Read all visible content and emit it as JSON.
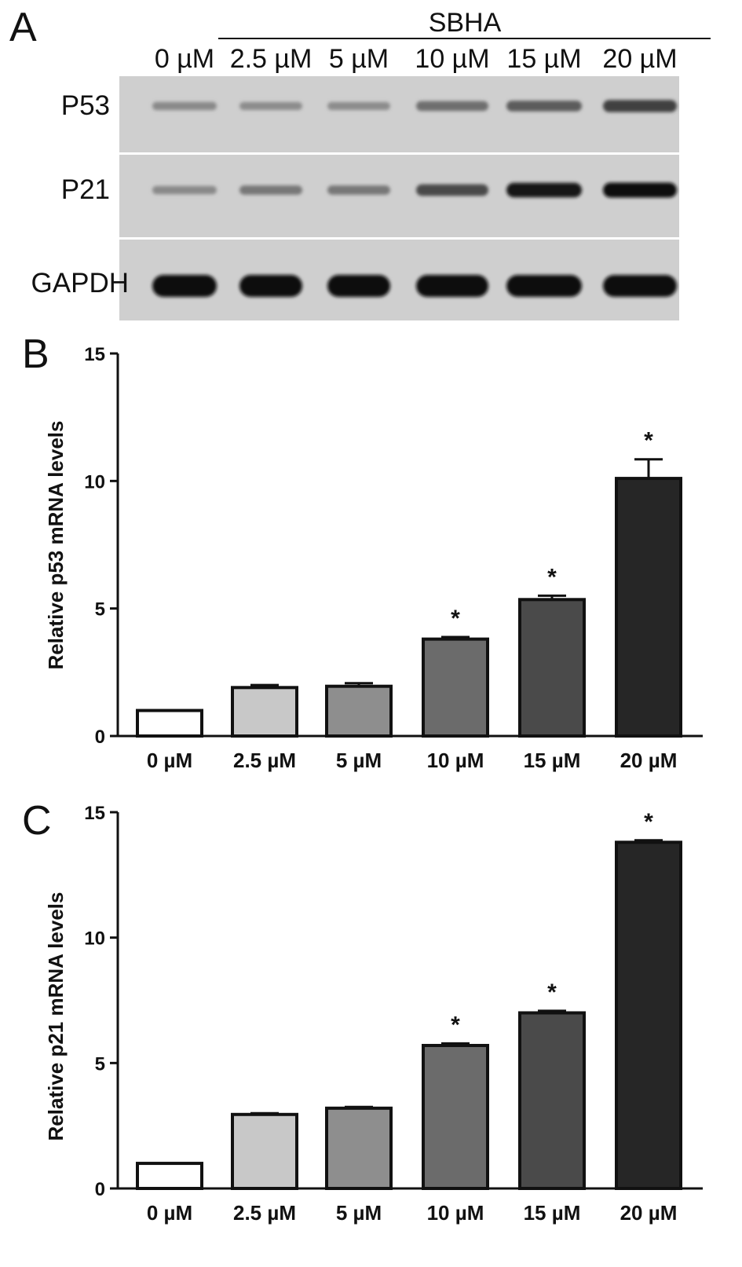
{
  "panel_a": {
    "letter": "A",
    "group_label": "SBHA",
    "lanes": [
      "0 µM",
      "2.5 µM",
      "5 µM",
      "10 µM",
      "15 µM",
      "20 µM"
    ],
    "rows": [
      {
        "label": "P53",
        "band_intensity": [
          0.3,
          0.28,
          0.28,
          0.45,
          0.55,
          0.7
        ]
      },
      {
        "label": "P21",
        "band_intensity": [
          0.3,
          0.4,
          0.4,
          0.65,
          0.95,
          1.0
        ]
      },
      {
        "label": "GAPDH",
        "band_intensity": [
          1.0,
          1.0,
          1.0,
          1.0,
          0.97,
          0.97
        ]
      }
    ],
    "blot_color": "#cfcfcf"
  },
  "chart_data": [
    {
      "panel_letter": "B",
      "type": "bar",
      "ylabel": "Relative p53 mRNA  levels",
      "xlabel": "",
      "ylim": [
        0,
        15
      ],
      "yticks": [
        0,
        5,
        10,
        15
      ],
      "categories": [
        "0 µM",
        "2.5 µM",
        "5 µM",
        "10 µM",
        "15 µM",
        "20 µM"
      ],
      "values": [
        1.0,
        1.9,
        1.95,
        3.8,
        5.35,
        10.1
      ],
      "error": [
        0,
        0.1,
        0.12,
        0.08,
        0.15,
        0.75
      ],
      "significance": [
        "",
        "",
        "",
        "*",
        "*",
        "*"
      ],
      "bar_colors": [
        "#ffffff",
        "#c8c8c8",
        "#8e8e8e",
        "#6b6b6b",
        "#4a4a4a",
        "#262626"
      ]
    },
    {
      "panel_letter": "C",
      "type": "bar",
      "ylabel": "Relative p21 mRNA  levels",
      "xlabel": "",
      "ylim": [
        0,
        15
      ],
      "yticks": [
        0,
        5,
        10,
        15
      ],
      "categories": [
        "0 µM",
        "2.5 µM",
        "5 µM",
        "10 µM",
        "15 µM",
        "20 µM"
      ],
      "values": [
        1.0,
        2.95,
        3.2,
        5.7,
        7.0,
        13.8
      ],
      "error": [
        0,
        0.05,
        0.05,
        0.08,
        0.08,
        0.08
      ],
      "significance": [
        "",
        "",
        "",
        "*",
        "*",
        "*"
      ],
      "bar_colors": [
        "#ffffff",
        "#c8c8c8",
        "#8e8e8e",
        "#6b6b6b",
        "#4a4a4a",
        "#262626"
      ]
    }
  ]
}
